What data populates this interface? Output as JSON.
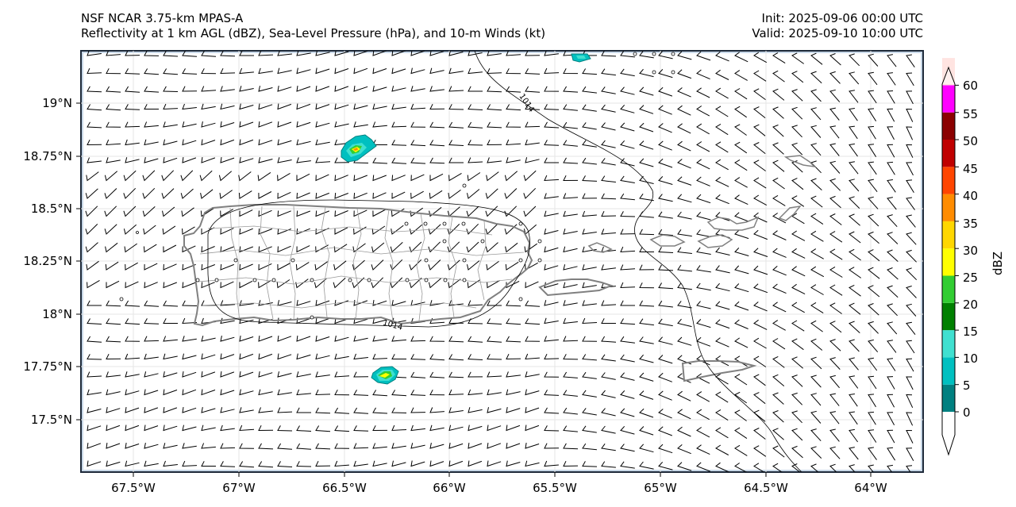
{
  "title": {
    "line1_left": "NSF NCAR 3.75-km MPAS-A",
    "line2_left": "Reflectivity at 1 km AGL (dBZ), Sea-Level Pressure (hPa), and 10-m Winds (kt)",
    "line1_right": "Init: 2025-09-06 00:00 UTC",
    "line2_right": "Valid: 2025-09-10 10:00 UTC"
  },
  "map": {
    "lon_range": [
      -67.75,
      -63.75
    ],
    "lat_range": [
      17.25,
      19.25
    ],
    "x_ticks": [
      "67.5°W",
      "67°W",
      "66.5°W",
      "66°W",
      "65.5°W",
      "65°W",
      "64.5°W",
      "64°W"
    ],
    "y_ticks": [
      "19°N",
      "18.75°N",
      "18.5°N",
      "18.25°N",
      "18°N",
      "17.75°N",
      "17.5°N"
    ],
    "isobar_labels": [
      "1014",
      "1014"
    ],
    "colors": {
      "land_outline": "#808080",
      "isobar": "#000000",
      "wind_barb": "#000000"
    }
  },
  "colorbar": {
    "label": "dBZ",
    "ticks": [
      "0",
      "5",
      "10",
      "15",
      "20",
      "25",
      "30",
      "35",
      "40",
      "45",
      "50",
      "55",
      "60"
    ],
    "colors": [
      "#008080",
      "#00c0c0",
      "#40e0d0",
      "#008000",
      "#32cd32",
      "#ffff00",
      "#ffd700",
      "#ff8c00",
      "#ff4500",
      "#c00000",
      "#8b0000",
      "#ff00ff",
      "#ffe4e1"
    ]
  }
}
